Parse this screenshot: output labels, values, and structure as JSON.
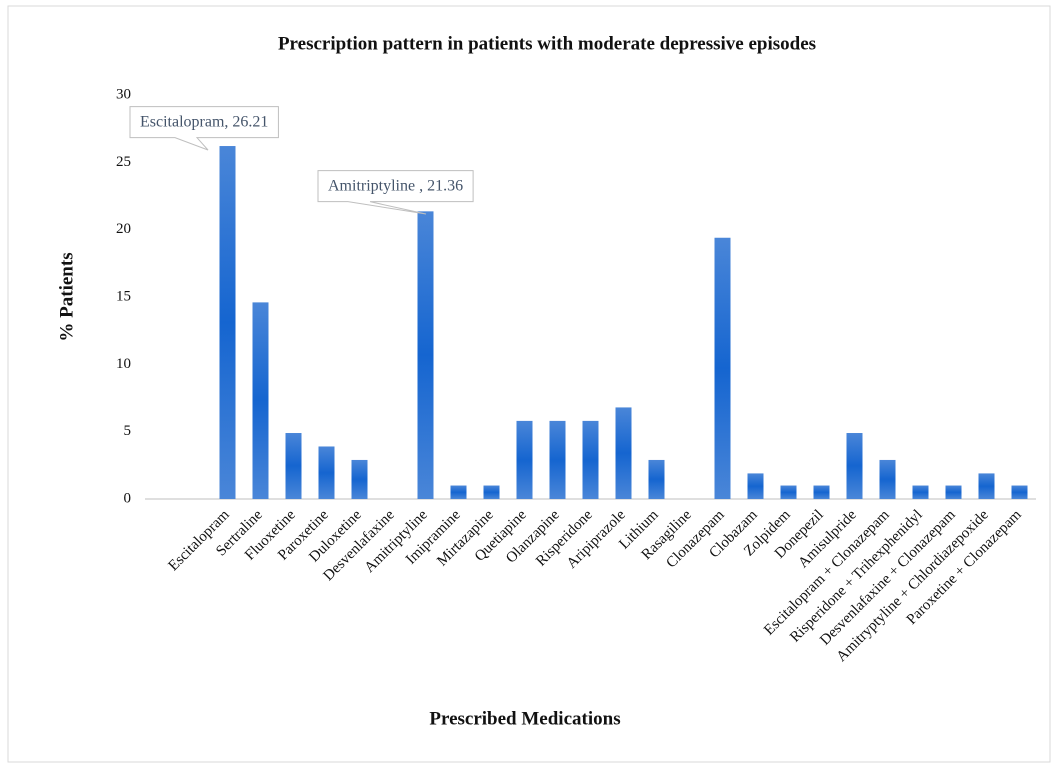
{
  "chart_data": {
    "type": "bar",
    "title": "Prescription pattern in patients with moderate depressive episodes",
    "ylabel": "% Patients",
    "xlabel": "Prescribed Medications",
    "categories": [
      null,
      null,
      "Escitalopram",
      "Sertraline",
      "Fluoxetine",
      "Paroxetine",
      "Duloxetine",
      "Desvenlafaxine",
      "Amitriptyline",
      "Imipramine",
      "Mirtazapine",
      "Quetiapine",
      "Olanzapine",
      "Risperidone",
      "Aripiprazole",
      "Lithium",
      "Rasagiline",
      "Clonazepam",
      "Clobazam",
      "Zolpidem",
      "Donepezil",
      "Amisulpride",
      "Escitalopram + Clonazepam",
      "Risperidone + Trihexphenidyl",
      "Desvenlafaxine + Clonazepam",
      "Amitryptyline + Chlordiazepoxide",
      "Paroxetine + Clonazepam"
    ],
    "values": [
      null,
      null,
      26.21,
      14.6,
      4.9,
      3.9,
      2.9,
      0,
      21.36,
      1,
      1,
      5.8,
      5.8,
      5.8,
      6.8,
      2.9,
      0,
      19.4,
      1.9,
      1,
      1,
      4.9,
      2.9,
      1,
      1,
      1.9,
      1
    ],
    "color": "#1f6fd1",
    "ylim": [
      0,
      30
    ],
    "yticks": [
      0,
      5,
      10,
      15,
      20,
      25,
      30
    ],
    "grid": false,
    "annotations": [
      "Escitalopram, 26.21",
      "Amitriptyline , 21.36"
    ]
  }
}
